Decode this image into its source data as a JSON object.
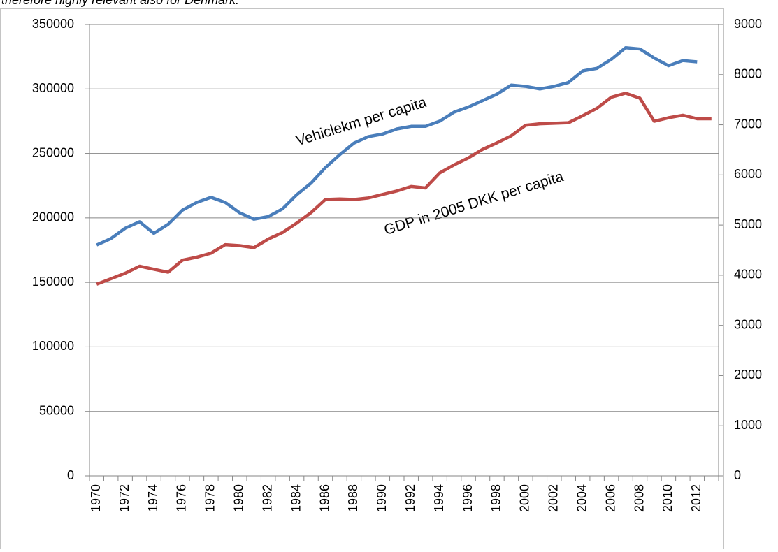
{
  "chart_data": {
    "type": "line",
    "caption_above": "therefore highly relevant also for Denmark.",
    "categories": [
      "1970",
      null,
      "1972",
      null,
      "1974",
      null,
      "1976",
      null,
      "1978",
      null,
      "1980",
      null,
      "1982",
      null,
      "1984",
      null,
      "1986",
      null,
      "1988",
      null,
      "1990",
      null,
      "1992",
      null,
      "1994",
      null,
      "1996",
      null,
      "1998",
      null,
      "2000",
      null,
      "2002",
      null,
      "2004",
      null,
      "2006",
      null,
      "2008",
      null,
      "2010",
      null,
      "2012",
      null
    ],
    "series": [
      {
        "name": "Vehiclekm per capita",
        "color": "#4a7ebb",
        "axis": "y",
        "values": [
          179000,
          184000,
          192000,
          197000,
          188000,
          195000,
          206000,
          212000,
          216000,
          212000,
          204000,
          199000,
          201000,
          207000,
          218000,
          227000,
          239000,
          249000,
          258000,
          263000,
          265000,
          269000,
          271000,
          271000,
          275000,
          282000,
          286000,
          291000,
          296000,
          303000,
          302000,
          300000,
          302000,
          305000,
          314000,
          316000,
          323000,
          332000,
          331000,
          324000,
          318000,
          322000,
          321000,
          null
        ]
      },
      {
        "name": "GDP in 2005 DKK per capita",
        "color": "#be4b48",
        "axis": "y2",
        "values": [
          3820,
          3930,
          4040,
          4180,
          4120,
          4060,
          4300,
          4360,
          4440,
          4610,
          4590,
          4550,
          4720,
          4850,
          5040,
          5250,
          5510,
          5520,
          5510,
          5540,
          5610,
          5680,
          5770,
          5740,
          6040,
          6200,
          6340,
          6510,
          6640,
          6780,
          6990,
          7020,
          7030,
          7040,
          7180,
          7330,
          7550,
          7630,
          7530,
          7070,
          7140,
          7190,
          7120,
          7120
        ]
      }
    ],
    "ylim": [
      0,
      350000
    ],
    "yticks": [
      0,
      50000,
      100000,
      150000,
      200000,
      250000,
      300000,
      350000
    ],
    "y2lim": [
      0,
      9000
    ],
    "y2ticks": [
      0,
      1000,
      2000,
      3000,
      4000,
      5000,
      6000,
      7000,
      8000,
      9000
    ],
    "grid": true
  }
}
